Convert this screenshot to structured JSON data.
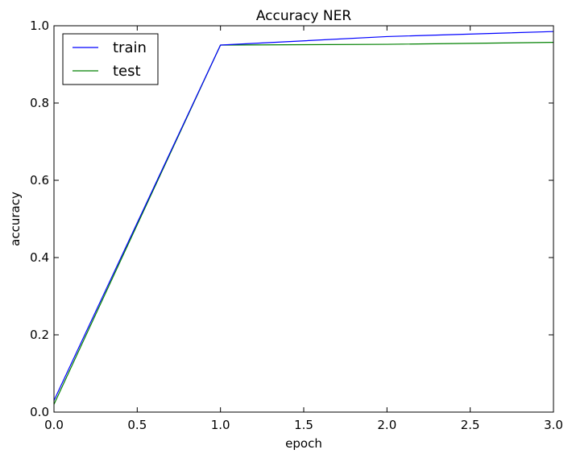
{
  "chart_data": {
    "type": "line",
    "title": "Accuracy NER",
    "xlabel": "epoch",
    "ylabel": "accuracy",
    "xlim": [
      0.0,
      3.0
    ],
    "ylim": [
      0.0,
      1.0
    ],
    "xticks": [
      "0.0",
      "0.5",
      "1.0",
      "1.5",
      "2.0",
      "2.5",
      "3.0"
    ],
    "yticks": [
      "0.0",
      "0.2",
      "0.4",
      "0.6",
      "0.8",
      "1.0"
    ],
    "x": [
      0,
      1,
      2,
      3
    ],
    "series": [
      {
        "name": "train",
        "color": "#0000ff",
        "values": [
          0.03,
          0.95,
          0.972,
          0.985
        ]
      },
      {
        "name": "test",
        "color": "#008000",
        "values": [
          0.02,
          0.95,
          0.952,
          0.957
        ]
      }
    ],
    "legend_position": "top-left",
    "grid": false
  }
}
